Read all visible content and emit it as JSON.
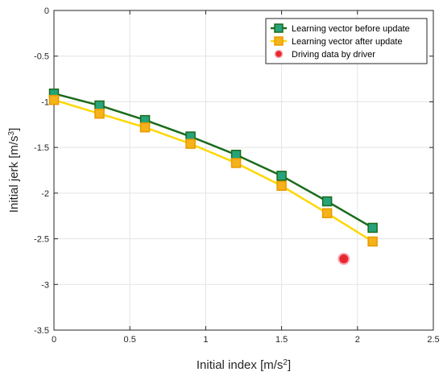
{
  "chart_data": {
    "type": "line",
    "x": [
      0,
      0.3,
      0.6,
      0.9,
      1.2,
      1.5,
      1.8,
      2.1
    ],
    "series": [
      {
        "name": "Learning vector before update",
        "values": [
          -0.91,
          -1.04,
          -1.2,
          -1.38,
          -1.58,
          -1.81,
          -2.09,
          -2.38
        ],
        "line_color": "#1b6b1b",
        "marker_fill": "#26a37a",
        "marker_edge": "#1b6b1b",
        "marker": "square"
      },
      {
        "name": "Learning vector after update",
        "values": [
          -0.98,
          -1.13,
          -1.28,
          -1.46,
          -1.67,
          -1.92,
          -2.22,
          -2.53
        ],
        "line_color": "#ffd700",
        "marker_fill": "#f5b21a",
        "marker_edge": "#e89a00",
        "marker": "square"
      }
    ],
    "points": [
      {
        "name": "Driving data by driver",
        "x": 1.91,
        "y": -2.72,
        "fill": "#e8262f",
        "edge": "#f7a8b0",
        "marker": "circle"
      }
    ],
    "xlabel": "Initial  index [m/s",
    "xlabel_sup": "2",
    "xlabel_end": "]",
    "ylabel": "Initial jerk [m/s",
    "ylabel_sup": "3",
    "ylabel_end": "]",
    "xlim": [
      0,
      2.5
    ],
    "ylim": [
      -3.5,
      0
    ],
    "xticks": [
      "0",
      "0.5",
      "1",
      "1.5",
      "2",
      "2.5"
    ],
    "yticks": [
      "0",
      "-0.5",
      "-1",
      "-1.5",
      "-2",
      "-2.5",
      "-3",
      "-3.5"
    ],
    "grid": true,
    "legend_position": "top-right"
  }
}
